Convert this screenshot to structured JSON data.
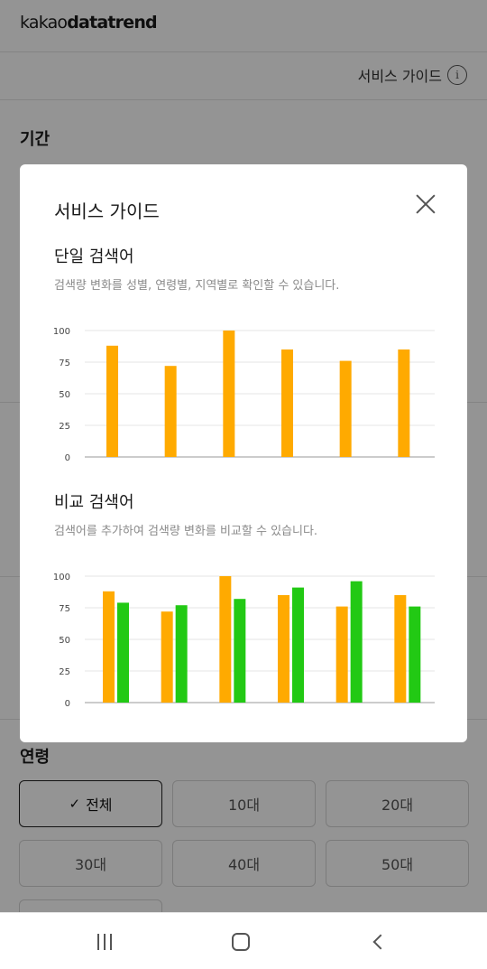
{
  "header": {
    "logo_light": "kakao",
    "logo_bold": "datatrend"
  },
  "guide_bar": {
    "label": "서비스 가이드",
    "info_glyph": "i"
  },
  "sections": {
    "period": "기간",
    "age": "연령"
  },
  "age_options": [
    {
      "label": "전체",
      "selected": true
    },
    {
      "label": "10대",
      "selected": false
    },
    {
      "label": "20대",
      "selected": false
    },
    {
      "label": "30대",
      "selected": false
    },
    {
      "label": "40대",
      "selected": false
    },
    {
      "label": "50대",
      "selected": false
    }
  ],
  "modal": {
    "title": "서비스 가이드",
    "single": {
      "title": "단일 검색어",
      "desc": "검색량 변화를 성별, 연령별, 지역별로 확인할 수 있습니다."
    },
    "compare": {
      "title": "비교 검색어",
      "desc": "검색어를 추가하여 검색량 변화를 비교할 수 있습니다."
    }
  },
  "colors": {
    "orange": "#FFAA00",
    "green": "#22C914",
    "grid": "#e6e6e6",
    "axis": "#999999"
  },
  "chart_data": [
    {
      "type": "bar",
      "categories": [
        "",
        "",
        "",
        "",
        "",
        ""
      ],
      "series": [
        {
          "values": [
            88,
            72,
            100,
            85,
            76,
            85
          ]
        }
      ],
      "ylim": [
        0,
        100
      ],
      "yticks": [
        "100",
        "75",
        "50",
        "25",
        "0"
      ],
      "grid": true
    },
    {
      "type": "bar",
      "categories": [
        "",
        "",
        "",
        "",
        "",
        ""
      ],
      "series": [
        {
          "values": [
            88,
            72,
            100,
            85,
            76,
            85
          ]
        },
        {
          "values": [
            79,
            77,
            82,
            91,
            96,
            76
          ]
        }
      ],
      "ylim": [
        0,
        100
      ],
      "yticks": [
        "100",
        "75",
        "50",
        "25",
        "0"
      ],
      "grid": true
    }
  ],
  "navbar": {
    "recent": "recent-apps-icon",
    "home": "home-icon",
    "back": "back-icon"
  }
}
